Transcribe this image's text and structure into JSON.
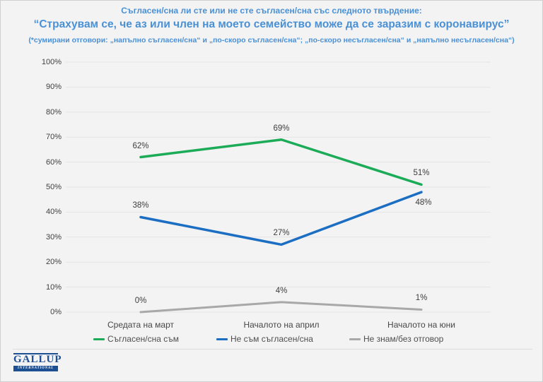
{
  "header": {
    "title_line1": "Съгласен/сна ли сте или не сте съгласен/сна със следното твърдение:",
    "title_line2": "“Страхувам се, че аз или член на моето семейство може да се заразим с коронавирус”",
    "title_line3": "(*сумирани отговори: „напълно съгласен/сна“ и „по-скоро съгласен/сна“; „по-скоро несъгласен/сна“ и „напълно несъгласен/сна“)"
  },
  "chart_data": {
    "type": "line",
    "categories": [
      "Средата на март",
      "Началото на април",
      "Началото на юни"
    ],
    "series": [
      {
        "name": "Съгласен/сна съм",
        "color": "#1cab57",
        "stroke_width": 3.5,
        "values": [
          62,
          69,
          51
        ]
      },
      {
        "name": "Не съм съгласен/сна",
        "color": "#1b6ec2",
        "stroke_width": 3.5,
        "values": [
          38,
          27,
          48
        ]
      },
      {
        "name": "Не знам/без отговор",
        "color": "#a8a8a8",
        "stroke_width": 3,
        "values": [
          0,
          4,
          1
        ]
      }
    ],
    "ylim": [
      0,
      100
    ],
    "ytick_step": 10,
    "yticks": [
      "0%",
      "10%",
      "20%",
      "30%",
      "40%",
      "50%",
      "60%",
      "70%",
      "80%",
      "90%",
      "100%"
    ],
    "grid": true,
    "legend_position": "bottom",
    "data_labels": true,
    "label_below_points": [
      {
        "series": 1,
        "point": 2
      }
    ]
  },
  "footer": {
    "logo_name": "GALLUP",
    "logo_sub": "INTERNATIONAL"
  },
  "colors": {
    "title": "#4a90d5",
    "grid": "#e5e5e6",
    "background": "#f3f3f4",
    "axis_text": "#3f3f3f"
  }
}
